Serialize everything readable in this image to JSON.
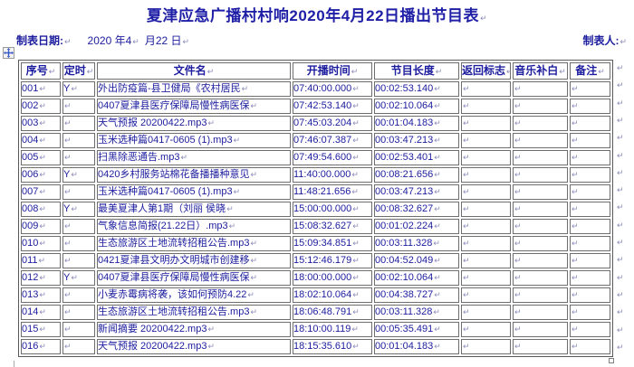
{
  "title": {
    "text": "夏津应急广播村村响2020年4月22日播出节目表"
  },
  "meta": {
    "date_label": "制表日期:",
    "date_value_1": "2020 年4",
    "date_value_2": "月22 日",
    "maker_label": "制表人:"
  },
  "marks": {
    "para_end": "↵",
    "cell_end": "↵",
    "row_end": "↵"
  },
  "colors": {
    "text": "#1c1c9e",
    "title": "#1e1ea6",
    "border": "#6e6e6e",
    "mark": "#8a8ab8"
  },
  "table": {
    "headers": [
      "序号",
      "定时",
      "文件名",
      "开播时间",
      "节目长度",
      "返回标志",
      "音乐补白",
      "备注"
    ],
    "rows": [
      {
        "no": "001",
        "timed": "Y",
        "file": "外出防疫篇-县卫健局《农村居民",
        "start": "07:40:00.000",
        "length": "00:02:53.140",
        "ret_flag": "",
        "music_fill": "",
        "note": ""
      },
      {
        "no": "002",
        "timed": "",
        "file": "0407夏津县医疗保障局慢性病医保",
        "start": "07:42:53.140",
        "length": "00:02:10.064",
        "ret_flag": "",
        "music_fill": "",
        "note": ""
      },
      {
        "no": "003",
        "timed": "",
        "file": "天气预报 20200422.mp3",
        "start": "07:45:03.204",
        "length": "00:01:04.183",
        "ret_flag": "",
        "music_fill": "",
        "note": ""
      },
      {
        "no": "004",
        "timed": "",
        "file": "玉米选种篇0417-0605 (1).mp3",
        "start": "07:46:07.387",
        "length": "00:03:47.213",
        "ret_flag": "",
        "music_fill": "",
        "note": ""
      },
      {
        "no": "005",
        "timed": "",
        "file": "扫黑除恶通告.mp3",
        "start": "07:49:54.600",
        "length": "00:02:53.401",
        "ret_flag": "",
        "music_fill": "",
        "note": ""
      },
      {
        "no": "006",
        "timed": "Y",
        "file": "0420乡村服务站棉花备播播种意见",
        "start": "11:40:00.000",
        "length": "00:08:21.656",
        "ret_flag": "",
        "music_fill": "",
        "note": ""
      },
      {
        "no": "007",
        "timed": "",
        "file": "玉米选种篇0417-0605 (1).mp3",
        "start": "11:48:21.656",
        "length": "00:03:47.213",
        "ret_flag": "",
        "music_fill": "",
        "note": ""
      },
      {
        "no": "008",
        "timed": "Y",
        "file": "最美夏津人第1期（刘丽 侯晓",
        "start": "15:00:00.000",
        "length": "00:08:32.627",
        "ret_flag": "",
        "music_fill": "",
        "note": ""
      },
      {
        "no": "009",
        "timed": "",
        "file": "气象信息简报(21.22日）.mp3",
        "start": "15:08:32.627",
        "length": "00:01:02.224",
        "ret_flag": "",
        "music_fill": "",
        "note": ""
      },
      {
        "no": "010",
        "timed": "",
        "file": "生态旅游区土地流转招租公告.mp3",
        "start": "15:09:34.851",
        "length": "00:03:11.328",
        "ret_flag": "",
        "music_fill": "",
        "note": ""
      },
      {
        "no": "011",
        "timed": "",
        "file": "0421夏津县文明办文明城市创建移",
        "start": "15:12:46.179",
        "length": "00:04:52.049",
        "ret_flag": "",
        "music_fill": "",
        "note": ""
      },
      {
        "no": "012",
        "timed": "Y",
        "file": "0407夏津县医疗保障局慢性病医保",
        "start": "18:00:00.000",
        "length": "00:02:10.064",
        "ret_flag": "",
        "music_fill": "",
        "note": ""
      },
      {
        "no": "013",
        "timed": "",
        "file": "小麦赤霉病将袭，该如何预防4.22",
        "start": "18:02:10.064",
        "length": "00:04:38.727",
        "ret_flag": "",
        "music_fill": "",
        "note": ""
      },
      {
        "no": "014",
        "timed": "",
        "file": "生态旅游区土地流转招租公告.mp3",
        "start": "18:06:48.791",
        "length": "00:03:11.328",
        "ret_flag": "",
        "music_fill": "",
        "note": ""
      },
      {
        "no": "015",
        "timed": "",
        "file": "新闻摘要 20200422.mp3",
        "start": "18:10:00.119",
        "length": "00:05:35.491",
        "ret_flag": "",
        "music_fill": "",
        "note": ""
      },
      {
        "no": "016",
        "timed": "",
        "file": "天气预报 20200422.mp3",
        "start": "18:15:35.610",
        "length": "00:01:04.183",
        "ret_flag": "",
        "music_fill": "",
        "note": ""
      }
    ]
  }
}
